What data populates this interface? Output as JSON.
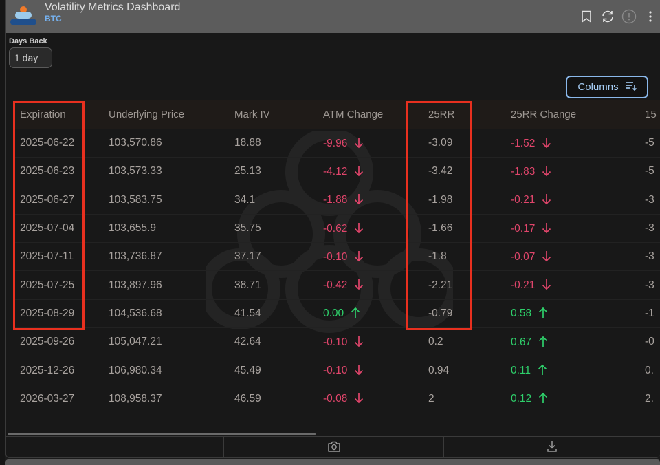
{
  "header": {
    "title": "Volatility Metrics Dashboard",
    "subtitle": "BTC",
    "icons": [
      "bookmark-icon",
      "refresh-icon",
      "info-alert-icon",
      "more-vertical-icon"
    ]
  },
  "filters": {
    "days_back_label": "Days Back",
    "days_back_value": "1 day"
  },
  "toolbar": {
    "columns_label": "Columns",
    "columns_icon": "sort-list-icon"
  },
  "table": {
    "columns": [
      "Expiration",
      "Underlying Price",
      "Mark IV",
      "ATM Change",
      "25RR",
      "25RR Change",
      "15"
    ],
    "rows": [
      {
        "expiration": "2025-06-22",
        "underlying": "103,570.86",
        "mark_iv": "18.88",
        "atm_change": "-9.96",
        "atm_dir": "down",
        "rr25": "-3.09",
        "rr25_change": "-1.52",
        "rr25_dir": "down",
        "col15": "-5"
      },
      {
        "expiration": "2025-06-23",
        "underlying": "103,573.33",
        "mark_iv": "25.13",
        "atm_change": "-4.12",
        "atm_dir": "down",
        "rr25": "-3.42",
        "rr25_change": "-1.83",
        "rr25_dir": "down",
        "col15": "-5"
      },
      {
        "expiration": "2025-06-27",
        "underlying": "103,583.75",
        "mark_iv": "34.1",
        "atm_change": "-1.88",
        "atm_dir": "down",
        "rr25": "-1.98",
        "rr25_change": "-0.21",
        "rr25_dir": "down",
        "col15": "-3"
      },
      {
        "expiration": "2025-07-04",
        "underlying": "103,655.9",
        "mark_iv": "35.75",
        "atm_change": "-0.62",
        "atm_dir": "down",
        "rr25": "-1.66",
        "rr25_change": "-0.17",
        "rr25_dir": "down",
        "col15": "-3"
      },
      {
        "expiration": "2025-07-11",
        "underlying": "103,736.87",
        "mark_iv": "37.17",
        "atm_change": "-0.10",
        "atm_dir": "down",
        "rr25": "-1.8",
        "rr25_change": "-0.07",
        "rr25_dir": "down",
        "col15": "-3"
      },
      {
        "expiration": "2025-07-25",
        "underlying": "103,897.96",
        "mark_iv": "38.71",
        "atm_change": "-0.42",
        "atm_dir": "down",
        "rr25": "-2.21",
        "rr25_change": "-0.21",
        "rr25_dir": "down",
        "col15": "-3"
      },
      {
        "expiration": "2025-08-29",
        "underlying": "104,536.68",
        "mark_iv": "41.54",
        "atm_change": "0.00",
        "atm_dir": "up",
        "rr25": "-0.79",
        "rr25_change": "0.58",
        "rr25_dir": "up",
        "col15": "-1"
      },
      {
        "expiration": "2025-09-26",
        "underlying": "105,047.21",
        "mark_iv": "42.64",
        "atm_change": "-0.10",
        "atm_dir": "down",
        "rr25": "0.2",
        "rr25_change": "0.67",
        "rr25_dir": "up",
        "col15": "-0"
      },
      {
        "expiration": "2025-12-26",
        "underlying": "106,980.34",
        "mark_iv": "45.49",
        "atm_change": "-0.10",
        "atm_dir": "down",
        "rr25": "0.94",
        "rr25_change": "0.11",
        "rr25_dir": "up",
        "col15": "0."
      },
      {
        "expiration": "2026-03-27",
        "underlying": "108,958.37",
        "mark_iv": "46.59",
        "atm_change": "-0.08",
        "atm_dir": "down",
        "rr25": "2",
        "rr25_change": "0.12",
        "rr25_dir": "up",
        "col15": "2."
      }
    ]
  },
  "annotations": {
    "highlight_color": "#e8301f",
    "highlighted_columns": [
      "Expiration",
      "25RR"
    ],
    "highlighted_rows_range": "rows 1-7"
  },
  "footer": {
    "icons": [
      "camera-icon",
      "download-icon"
    ]
  },
  "colors": {
    "negative": "#e0456b",
    "positive": "#2ecf6a",
    "accent": "#8ab8ea",
    "subtitle": "#76b2f0",
    "header_bg": "#5c5c5c"
  }
}
